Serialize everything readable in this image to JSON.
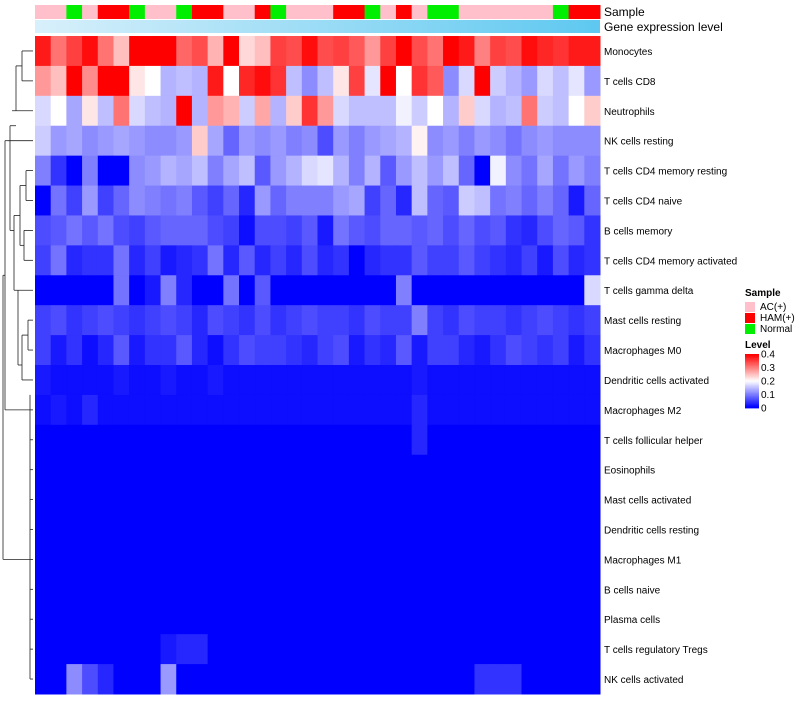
{
  "chart_data": {
    "type": "heatmap",
    "title": "",
    "annotation_labels": [
      "Sample",
      "Gene expression level"
    ],
    "sample_groups": [
      "AC(+)",
      "AC(+)",
      "Normal",
      "AC(+)",
      "HAM(+)",
      "HAM(+)",
      "Normal",
      "AC(+)",
      "AC(+)",
      "Normal",
      "HAM(+)",
      "HAM(+)",
      "AC(+)",
      "AC(+)",
      "HAM(+)",
      "Normal",
      "AC(+)",
      "AC(+)",
      "AC(+)",
      "HAM(+)",
      "HAM(+)",
      "Normal",
      "AC(+)",
      "HAM(+)",
      "AC(+)",
      "Normal",
      "Normal",
      "AC(+)",
      "AC(+)",
      "AC(+)",
      "AC(+)",
      "AC(+)",
      "AC(+)",
      "Normal",
      "HAM(+)",
      "HAM(+)"
    ],
    "cell_types": [
      "Monocytes",
      "T cells CD8",
      "Neutrophils",
      "NK cells resting",
      "T cells CD4 memory resting",
      "T cells CD4 naive",
      "B cells memory",
      "T cells CD4 memory activated",
      "T cells gamma delta",
      "Mast cells resting",
      "Macrophages M0",
      "Dendritic cells activated",
      "Macrophages M2",
      "T cells follicular helper",
      "Eosinophils",
      "Mast cells activated",
      "Dendritic cells resting",
      "Macrophages M1",
      "B cells naive",
      "Plasma cells",
      "T cells regulatory  Tregs",
      "NK cells activated"
    ],
    "values": [
      [
        0.38,
        0.31,
        0.35,
        0.39,
        0.31,
        0.25,
        0.4,
        0.4,
        0.4,
        0.32,
        0.34,
        0.26,
        0.4,
        0.23,
        0.25,
        0.35,
        0.34,
        0.39,
        0.34,
        0.35,
        0.33,
        0.28,
        0.35,
        0.4,
        0.34,
        0.31,
        0.4,
        0.38,
        0.3,
        0.35,
        0.34,
        0.39,
        0.37,
        0.36,
        0.38,
        0.38
      ],
      [
        0.28,
        0.25,
        0.4,
        0.29,
        0.4,
        0.4,
        0.22,
        0.2,
        0.14,
        0.15,
        0.14,
        0.38,
        0.2,
        0.37,
        0.39,
        0.36,
        0.15,
        0.11,
        0.15,
        0.22,
        0.35,
        0.18,
        0.4,
        0.2,
        0.36,
        0.33,
        0.11,
        0.17,
        0.4,
        0.16,
        0.14,
        0.12,
        0.17,
        0.15,
        0.18,
        0.12
      ],
      [
        0.17,
        0.2,
        0.13,
        0.22,
        0.15,
        0.31,
        0.17,
        0.15,
        0.14,
        0.4,
        0.14,
        0.28,
        0.26,
        0.16,
        0.27,
        0.14,
        0.24,
        0.36,
        0.28,
        0.17,
        0.15,
        0.15,
        0.15,
        0.19,
        0.16,
        0.2,
        0.14,
        0.24,
        0.17,
        0.14,
        0.15,
        0.31,
        0.16,
        0.15,
        0.2,
        0.24
      ],
      [
        0.16,
        0.12,
        0.13,
        0.11,
        0.12,
        0.13,
        0.12,
        0.11,
        0.11,
        0.12,
        0.24,
        0.13,
        0.08,
        0.12,
        0.11,
        0.12,
        0.1,
        0.11,
        0.06,
        0.12,
        0.1,
        0.12,
        0.13,
        0.14,
        0.21,
        0.11,
        0.12,
        0.1,
        0.12,
        0.11,
        0.09,
        0.11,
        0.12,
        0.11,
        0.11,
        0.11
      ],
      [
        0.1,
        0.04,
        0.0,
        0.1,
        0.0,
        0.0,
        0.11,
        0.12,
        0.14,
        0.13,
        0.15,
        0.1,
        0.13,
        0.15,
        0.07,
        0.12,
        0.14,
        0.17,
        0.18,
        0.14,
        0.1,
        0.14,
        0.07,
        0.12,
        0.15,
        0.12,
        0.15,
        0.08,
        0.0,
        0.19,
        0.11,
        0.09,
        0.13,
        0.09,
        0.12,
        0.1
      ],
      [
        0.0,
        0.09,
        0.05,
        0.12,
        0.05,
        0.08,
        0.11,
        0.1,
        0.09,
        0.1,
        0.07,
        0.05,
        0.08,
        0.03,
        0.12,
        0.08,
        0.1,
        0.1,
        0.1,
        0.12,
        0.13,
        0.05,
        0.08,
        0.03,
        0.15,
        0.08,
        0.07,
        0.16,
        0.15,
        0.09,
        0.1,
        0.08,
        0.1,
        0.08,
        0.02,
        0.08
      ],
      [
        0.06,
        0.07,
        0.09,
        0.07,
        0.09,
        0.06,
        0.05,
        0.07,
        0.08,
        0.08,
        0.08,
        0.06,
        0.05,
        0.01,
        0.06,
        0.06,
        0.05,
        0.07,
        0.02,
        0.09,
        0.07,
        0.06,
        0.08,
        0.08,
        0.07,
        0.08,
        0.06,
        0.08,
        0.06,
        0.07,
        0.04,
        0.03,
        0.06,
        0.08,
        0.07,
        0.04
      ],
      [
        0.05,
        0.09,
        0.03,
        0.04,
        0.04,
        0.09,
        0.03,
        0.05,
        0.02,
        0.03,
        0.04,
        0.09,
        0.03,
        0.07,
        0.03,
        0.05,
        0.03,
        0.06,
        0.03,
        0.04,
        0.0,
        0.03,
        0.04,
        0.04,
        0.07,
        0.05,
        0.05,
        0.07,
        0.05,
        0.04,
        0.03,
        0.05,
        0.02,
        0.06,
        0.03,
        0.04
      ],
      [
        0.0,
        0.0,
        0.0,
        0.0,
        0.0,
        0.09,
        0.0,
        0.02,
        0.1,
        0.03,
        0.0,
        0.0,
        0.09,
        0.0,
        0.07,
        0.0,
        0.0,
        0.0,
        0.0,
        0.0,
        0.0,
        0.0,
        0.0,
        0.1,
        0.0,
        0.0,
        0.0,
        0.0,
        0.0,
        0.0,
        0.0,
        0.0,
        0.0,
        0.0,
        0.0,
        0.17
      ],
      [
        0.05,
        0.06,
        0.04,
        0.05,
        0.06,
        0.05,
        0.04,
        0.05,
        0.06,
        0.05,
        0.03,
        0.06,
        0.05,
        0.04,
        0.06,
        0.04,
        0.05,
        0.06,
        0.05,
        0.05,
        0.04,
        0.06,
        0.05,
        0.05,
        0.1,
        0.05,
        0.04,
        0.06,
        0.05,
        0.05,
        0.04,
        0.05,
        0.06,
        0.05,
        0.04,
        0.05
      ],
      [
        0.05,
        0.02,
        0.04,
        0.01,
        0.03,
        0.07,
        0.02,
        0.04,
        0.04,
        0.07,
        0.03,
        0.01,
        0.04,
        0.06,
        0.05,
        0.05,
        0.04,
        0.03,
        0.05,
        0.06,
        0.02,
        0.04,
        0.03,
        0.07,
        0.02,
        0.05,
        0.05,
        0.03,
        0.02,
        0.04,
        0.06,
        0.05,
        0.04,
        0.05,
        0.02,
        0.04
      ],
      [
        0.02,
        0.01,
        0.01,
        0.01,
        0.01,
        0.02,
        0.01,
        0.01,
        0.02,
        0.01,
        0.01,
        0.02,
        0.01,
        0.01,
        0.01,
        0.01,
        0.01,
        0.01,
        0.01,
        0.01,
        0.01,
        0.01,
        0.01,
        0.01,
        0.02,
        0.01,
        0.01,
        0.01,
        0.01,
        0.01,
        0.01,
        0.01,
        0.01,
        0.01,
        0.01,
        0.01
      ],
      [
        0.01,
        0.02,
        0.01,
        0.03,
        0.01,
        0.01,
        0.01,
        0.01,
        0.01,
        0.01,
        0.01,
        0.01,
        0.01,
        0.01,
        0.01,
        0.01,
        0.01,
        0.01,
        0.01,
        0.01,
        0.01,
        0.01,
        0.01,
        0.01,
        0.03,
        0.01,
        0.01,
        0.01,
        0.01,
        0.01,
        0.01,
        0.01,
        0.01,
        0.01,
        0.01,
        0.01
      ],
      [
        0.0,
        0.0,
        0.0,
        0.0,
        0.0,
        0.0,
        0.0,
        0.0,
        0.0,
        0.0,
        0.0,
        0.0,
        0.0,
        0.0,
        0.0,
        0.0,
        0.0,
        0.0,
        0.0,
        0.0,
        0.0,
        0.0,
        0.0,
        0.0,
        0.03,
        0.0,
        0.0,
        0.0,
        0.0,
        0.0,
        0.0,
        0.0,
        0.0,
        0.0,
        0.0,
        0.0
      ],
      [
        0.0,
        0.0,
        0.0,
        0.0,
        0.0,
        0.0,
        0.0,
        0.0,
        0.0,
        0.0,
        0.0,
        0.0,
        0.0,
        0.0,
        0.0,
        0.0,
        0.0,
        0.0,
        0.0,
        0.0,
        0.0,
        0.0,
        0.0,
        0.0,
        0.0,
        0.0,
        0.0,
        0.0,
        0.0,
        0.0,
        0.0,
        0.0,
        0.0,
        0.0,
        0.0,
        0.0
      ],
      [
        0.0,
        0.0,
        0.0,
        0.0,
        0.0,
        0.0,
        0.0,
        0.0,
        0.0,
        0.0,
        0.0,
        0.0,
        0.0,
        0.0,
        0.0,
        0.0,
        0.0,
        0.0,
        0.0,
        0.0,
        0.0,
        0.0,
        0.0,
        0.0,
        0.0,
        0.0,
        0.0,
        0.0,
        0.0,
        0.0,
        0.0,
        0.0,
        0.0,
        0.0,
        0.0,
        0.0
      ],
      [
        0.0,
        0.0,
        0.0,
        0.0,
        0.0,
        0.0,
        0.0,
        0.0,
        0.0,
        0.0,
        0.0,
        0.0,
        0.0,
        0.0,
        0.0,
        0.0,
        0.0,
        0.0,
        0.0,
        0.0,
        0.0,
        0.0,
        0.0,
        0.0,
        0.0,
        0.0,
        0.0,
        0.0,
        0.0,
        0.0,
        0.0,
        0.0,
        0.0,
        0.0,
        0.0,
        0.0
      ],
      [
        0.0,
        0.0,
        0.0,
        0.0,
        0.0,
        0.0,
        0.0,
        0.0,
        0.0,
        0.0,
        0.0,
        0.0,
        0.0,
        0.0,
        0.0,
        0.0,
        0.0,
        0.0,
        0.0,
        0.0,
        0.0,
        0.0,
        0.0,
        0.0,
        0.0,
        0.0,
        0.0,
        0.0,
        0.0,
        0.0,
        0.0,
        0.0,
        0.0,
        0.0,
        0.0,
        0.0
      ],
      [
        0.0,
        0.0,
        0.0,
        0.0,
        0.0,
        0.0,
        0.0,
        0.0,
        0.0,
        0.0,
        0.0,
        0.0,
        0.0,
        0.0,
        0.0,
        0.0,
        0.0,
        0.0,
        0.0,
        0.0,
        0.0,
        0.0,
        0.0,
        0.0,
        0.0,
        0.0,
        0.0,
        0.0,
        0.0,
        0.0,
        0.0,
        0.0,
        0.0,
        0.0,
        0.0,
        0.0
      ],
      [
        0.0,
        0.0,
        0.0,
        0.0,
        0.0,
        0.0,
        0.0,
        0.0,
        0.0,
        0.0,
        0.0,
        0.0,
        0.0,
        0.0,
        0.0,
        0.0,
        0.0,
        0.0,
        0.0,
        0.0,
        0.0,
        0.0,
        0.0,
        0.0,
        0.0,
        0.0,
        0.0,
        0.0,
        0.0,
        0.0,
        0.0,
        0.0,
        0.0,
        0.0,
        0.0,
        0.0
      ],
      [
        0.0,
        0.0,
        0.0,
        0.0,
        0.0,
        0.0,
        0.0,
        0.0,
        0.02,
        0.03,
        0.03,
        0.0,
        0.0,
        0.0,
        0.0,
        0.0,
        0.0,
        0.0,
        0.0,
        0.0,
        0.0,
        0.0,
        0.0,
        0.0,
        0.0,
        0.0,
        0.0,
        0.0,
        0.0,
        0.0,
        0.0,
        0.0,
        0.0,
        0.0,
        0.0,
        0.0
      ],
      [
        0.0,
        0.0,
        0.11,
        0.06,
        0.03,
        0.0,
        0.0,
        0.0,
        0.12,
        0.0,
        0.0,
        0.0,
        0.0,
        0.0,
        0.0,
        0.0,
        0.0,
        0.0,
        0.0,
        0.0,
        0.0,
        0.0,
        0.0,
        0.0,
        0.0,
        0.0,
        0.0,
        0.0,
        0.04,
        0.04,
        0.04,
        0.0,
        0.0,
        0.0,
        0.0,
        0.0
      ]
    ],
    "legends": {
      "sample_title": "Sample",
      "sample_entries": [
        {
          "label": "AC(+)",
          "color": "#ffc0cb"
        },
        {
          "label": "HAM(+)",
          "color": "#ff0000"
        },
        {
          "label": "Normal",
          "color": "#00ee00"
        }
      ],
      "level_title": "Level",
      "level_ticks": [
        "0.4",
        "0.3",
        "0.2",
        "0.1",
        "0"
      ],
      "level_range": [
        0,
        0.4
      ]
    },
    "colors": {
      "low": "#0000ff",
      "mid": "#ffffff",
      "high": "#ff0000",
      "expression_bar": "#5ec8f0",
      "expression_bar_light": "#d8f0fb"
    }
  }
}
